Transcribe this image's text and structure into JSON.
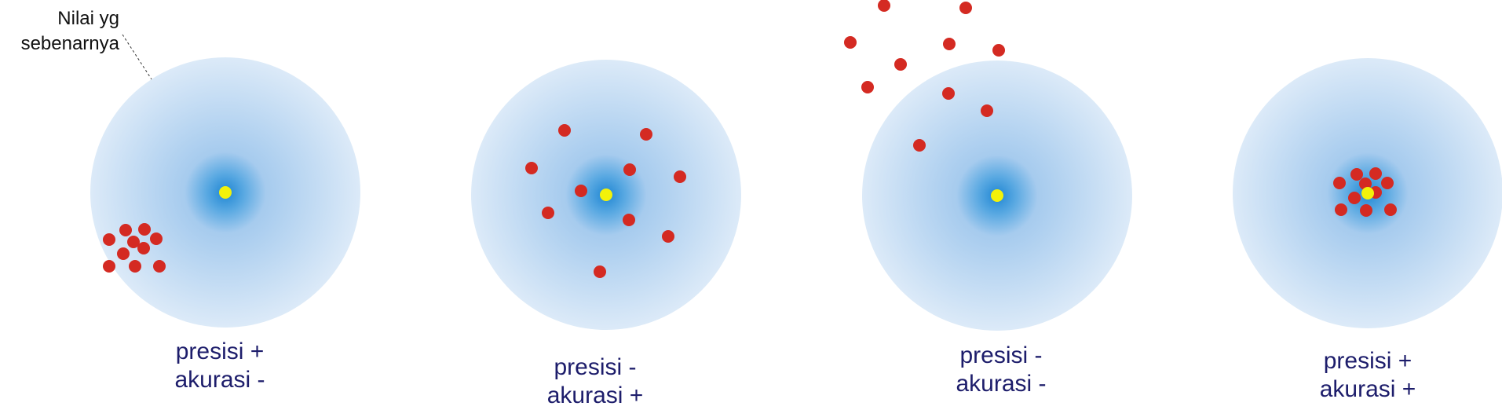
{
  "annotation": {
    "line1": "Nilai yg",
    "line2": "sebenarnya"
  },
  "colors": {
    "target_outer": "#d6e7f7",
    "target_mid": "#a9cdee",
    "target_center": "#2f8fd6",
    "hit": "#d42a22",
    "true_value": "#f2f20a",
    "caption": "#1d1d6b"
  },
  "targets": [
    {
      "name": "target-1",
      "precision_label": "presisi +",
      "accuracy_label": "akurasi -"
    },
    {
      "name": "target-2",
      "precision_label": "presisi -",
      "accuracy_label": "akurasi +"
    },
    {
      "name": "target-3",
      "precision_label": "presisi -",
      "accuracy_label": "akurasi -"
    },
    {
      "name": "target-4",
      "precision_label": "presisi +",
      "accuracy_label": "akurasi +"
    }
  ]
}
